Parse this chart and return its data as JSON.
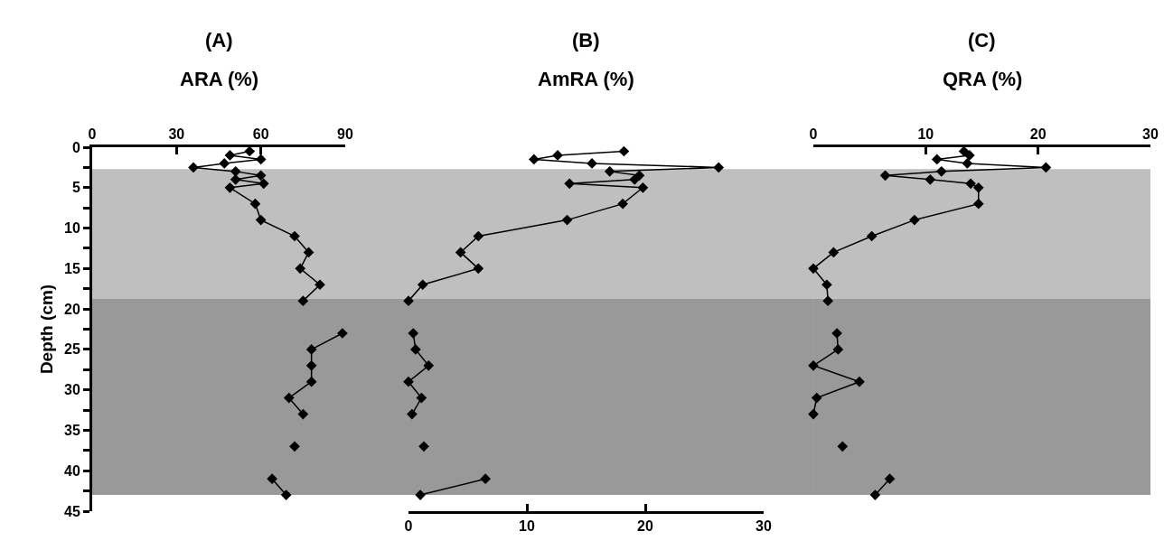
{
  "chart_data": [
    {
      "type": "line",
      "title": "(A)",
      "x2label": "ARA (%)",
      "ylabel": "Depth (cm)",
      "orientation": "horizontal",
      "marker": "diamond",
      "line_style": "solid",
      "grid": false,
      "x": [
        0.5,
        1,
        1.5,
        2,
        2.5,
        3,
        3.5,
        4,
        4.5,
        5,
        7,
        9,
        11,
        13,
        15,
        17,
        19,
        21,
        23,
        25,
        27,
        29,
        31,
        33,
        35,
        37,
        39,
        41,
        43
      ],
      "series": [
        {
          "axis": "x2",
          "color": "#000000",
          "values": [
            56,
            49,
            60,
            47,
            36,
            51,
            60,
            51,
            61,
            49,
            58,
            60,
            72,
            77,
            74,
            81,
            75,
            null,
            89,
            78,
            78,
            78,
            70,
            75,
            null,
            72,
            null,
            64,
            69
          ]
        }
      ],
      "x2lim": [
        0,
        90
      ],
      "x2ticks": [
        0,
        30,
        60,
        90
      ],
      "ylim": [
        45,
        0
      ],
      "yticks": [
        0,
        {
          "value": 2.5,
          "label": null
        },
        5,
        {
          "value": 7.5,
          "label": null
        },
        10,
        {
          "value": 12.5,
          "label": null
        },
        15,
        {
          "value": 17.5,
          "label": null
        },
        20,
        {
          "value": 22.5,
          "label": null
        },
        25,
        {
          "value": 27.5,
          "label": null
        },
        30,
        {
          "value": 32.5,
          "label": null
        },
        35,
        {
          "value": 37.5,
          "label": null
        },
        40,
        {
          "value": 42.5,
          "label": null
        },
        45
      ],
      "bands": [
        {
          "axis": "y",
          "from": 2.7,
          "to": 18.75,
          "color": "#bfbfbf"
        },
        {
          "axis": "y",
          "from": 18.75,
          "to": 43,
          "color": "#999999"
        }
      ]
    },
    {
      "type": "line",
      "title": "(B)",
      "xlabel": "AmRA (%)",
      "orientation": "horizontal",
      "marker": "diamond",
      "line_style": "solid",
      "grid": false,
      "tick_labels": "x",
      "x": [
        0.5,
        1,
        1.5,
        2,
        2.5,
        3,
        3.5,
        4,
        4.5,
        5,
        7,
        9,
        11,
        13,
        15,
        17,
        19,
        21,
        23,
        25,
        27,
        29,
        31,
        33,
        35,
        37,
        39,
        41,
        43
      ],
      "series": [
        {
          "color": "#000000",
          "values": [
            18.2,
            12.6,
            10.6,
            15.5,
            26.2,
            17.0,
            19.5,
            19.1,
            13.6,
            19.8,
            18.1,
            13.4,
            5.9,
            4.4,
            5.9,
            1.2,
            0,
            null,
            0.4,
            0.6,
            1.7,
            0,
            1.1,
            0.3,
            null,
            1.3,
            null,
            6.5,
            1.0
          ]
        }
      ],
      "xlim": [
        0,
        30
      ],
      "xticks": [
        0,
        10,
        20,
        30
      ],
      "ylim": [
        45,
        0
      ],
      "bands": [
        {
          "axis": "y",
          "from": 2.7,
          "to": 18.75,
          "color": "#bfbfbf"
        },
        {
          "axis": "y",
          "from": 18.75,
          "to": 43,
          "color": "#999999"
        }
      ]
    },
    {
      "type": "line",
      "title": "(C)",
      "x2label": "QRA (%)",
      "orientation": "horizontal",
      "marker": "diamond",
      "line_style": "solid",
      "grid": false,
      "tick_labels": "x",
      "x": [
        0.5,
        1,
        1.5,
        2,
        2.5,
        3,
        3.5,
        4,
        4.5,
        5,
        7,
        9,
        11,
        13,
        15,
        17,
        19,
        21,
        23,
        25,
        27,
        29,
        31,
        33,
        35,
        37,
        39,
        41,
        43
      ],
      "series": [
        {
          "axis": "x2",
          "color": "#000000",
          "values": [
            13.4,
            13.9,
            11.0,
            13.7,
            20.7,
            11.4,
            6.4,
            10.4,
            14.0,
            14.7,
            14.7,
            9.0,
            5.2,
            1.8,
            0,
            1.2,
            1.3,
            null,
            2.1,
            2.2,
            0,
            4.1,
            0.3,
            0,
            null,
            2.6,
            null,
            6.8,
            5.5
          ]
        }
      ],
      "x2lim": [
        0,
        30
      ],
      "x2ticks": [
        0,
        10,
        20,
        30
      ],
      "ylim": [
        45,
        0
      ],
      "bands": [
        {
          "axis": "y",
          "from": 2.7,
          "to": 18.75,
          "color": "#bfbfbf"
        },
        {
          "axis": "y",
          "from": 18.75,
          "to": 43,
          "color": "#999999"
        }
      ]
    }
  ]
}
